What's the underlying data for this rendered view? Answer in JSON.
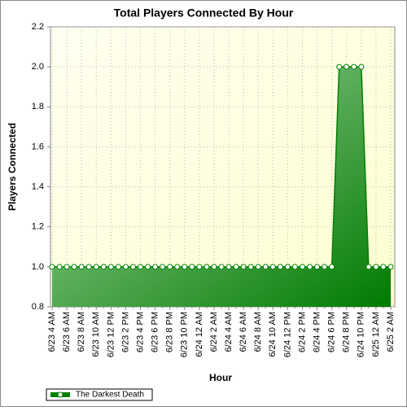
{
  "chart_data": {
    "type": "line",
    "title": "Total Players Connected By Hour",
    "x_label": "Hour",
    "y_label": "Players Connected",
    "categories": [
      "6/23 4 AM",
      null,
      "6/23 6 AM",
      null,
      "6/23 8 AM",
      null,
      "6/23 10 AM",
      null,
      "6/23 12 PM",
      null,
      "6/23 2 PM",
      null,
      "6/23 4 PM",
      null,
      "6/23 6 PM",
      null,
      "6/23 8 PM",
      null,
      "6/23 10 PM",
      null,
      "6/24 12 AM",
      null,
      "6/24 2 AM",
      null,
      "6/24 4 AM",
      null,
      "6/24 6 AM",
      null,
      "6/24 8 AM",
      null,
      "6/24 10 AM",
      null,
      "6/24 12 PM",
      null,
      "6/24 2 PM",
      null,
      "6/24 4 PM",
      null,
      "6/24 6 PM",
      null,
      "6/24 8 PM",
      null,
      "6/24 10 PM",
      null,
      "6/25 12 AM",
      null,
      "6/25 2 AM"
    ],
    "series": [
      {
        "name": "The Darkest Death",
        "color": "#008000",
        "values": [
          1,
          1,
          1,
          1,
          1,
          1,
          1,
          1,
          1,
          1,
          1,
          1,
          1,
          1,
          1,
          1,
          1,
          1,
          1,
          1,
          1,
          1,
          1,
          1,
          1,
          1,
          1,
          1,
          1,
          1,
          1,
          1,
          1,
          1,
          1,
          1,
          1,
          1,
          1,
          2,
          2,
          2,
          2,
          1,
          1,
          1,
          1
        ]
      }
    ],
    "ylim": [
      0.8,
      2.2
    ],
    "yticks": [
      0.8,
      {
        "value": 1,
        "label": "1.0"
      },
      1.2,
      1.4,
      1.6,
      1.8,
      {
        "value": 2,
        "label": "2.0"
      },
      2.2
    ],
    "grid": true,
    "filled": true,
    "legend": "bottom-left"
  }
}
